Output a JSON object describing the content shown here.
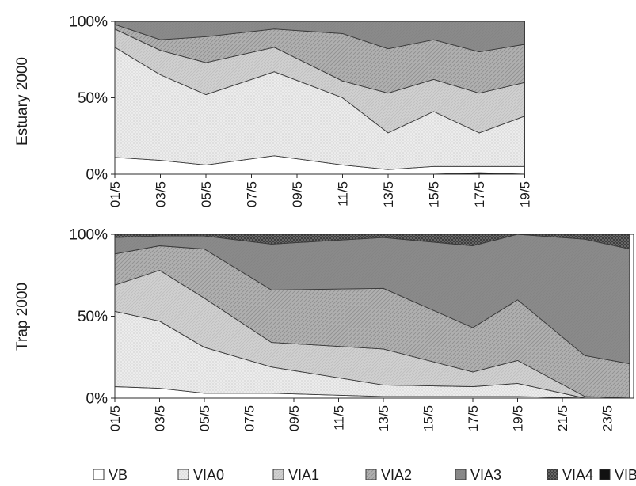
{
  "colors": {
    "VB": "#ffffff",
    "VIA0": "#ececec",
    "VIA1": "#d0d0d0",
    "VIA2": "#b0b0b0",
    "VIA3": "#8a8a8a",
    "VIA4": "#5a5a5a",
    "VIB": "#111111"
  },
  "legend": {
    "placement": "bottom",
    "items": [
      {
        "key": "VB",
        "label": "VB"
      },
      {
        "key": "VIA0",
        "label": "VIA0"
      },
      {
        "key": "VIA1",
        "label": "VIA1"
      },
      {
        "key": "VIA2",
        "label": "VIA2"
      },
      {
        "key": "VIA3",
        "label": "VIA3"
      },
      {
        "key": "VIA4",
        "label": "VIA4"
      },
      {
        "key": "VIB",
        "label": "VIB"
      }
    ]
  },
  "chart_data": [
    {
      "type": "area",
      "stacked": true,
      "percent": true,
      "ylabel": "Estuary 2000",
      "yticks": [
        "0%",
        "50%",
        "100%"
      ],
      "ylim": [
        0,
        100
      ],
      "grid": false,
      "xticks": [
        "01/5",
        "03/5",
        "05/5",
        "07/5",
        "09/5",
        "11/5",
        "13/5",
        "15/5",
        "17/5",
        "19/5"
      ],
      "x": [
        "01/5",
        "03/5",
        "05/5",
        "08/5",
        "11/5",
        "13/5",
        "15/5",
        "17/5",
        "19/5"
      ],
      "x_index": [
        0,
        1,
        2,
        3.5,
        5,
        6,
        7,
        8,
        9
      ],
      "series": [
        {
          "name": "VIB",
          "values": [
            0,
            0,
            0,
            0,
            0,
            0,
            0,
            1,
            0
          ]
        },
        {
          "name": "VB",
          "values": [
            11,
            9,
            6,
            12,
            6,
            3,
            5,
            4,
            5
          ]
        },
        {
          "name": "VIA0",
          "values": [
            72,
            56,
            46,
            55,
            44,
            24,
            36,
            22,
            33
          ]
        },
        {
          "name": "VIA1",
          "values": [
            12,
            16,
            21,
            16,
            11,
            26,
            21,
            26,
            22
          ]
        },
        {
          "name": "VIA2",
          "values": [
            3,
            7,
            17,
            12,
            31,
            29,
            26,
            27,
            25
          ]
        },
        {
          "name": "VIA3",
          "values": [
            2,
            12,
            10,
            5,
            8,
            18,
            12,
            20,
            15
          ]
        },
        {
          "name": "VIA4",
          "values": [
            0,
            0,
            0,
            0,
            0,
            0,
            0,
            0,
            0
          ]
        }
      ]
    },
    {
      "type": "area",
      "stacked": true,
      "percent": true,
      "ylabel": "Trap 2000",
      "yticks": [
        "0%",
        "50%",
        "100%"
      ],
      "ylim": [
        0,
        100
      ],
      "grid": false,
      "xticks": [
        "01/5",
        "03/5",
        "05/5",
        "07/5",
        "09/5",
        "11/5",
        "13/5",
        "15/5",
        "17/5",
        "19/5",
        "21/5",
        "23/5"
      ],
      "x": [
        "01/5",
        "03/5",
        "05/5",
        "08/5",
        "13/5",
        "17/5",
        "19/5",
        "22/5",
        "24/5"
      ],
      "x_index": [
        0,
        1,
        2,
        3.5,
        6,
        8,
        9,
        10.5,
        11.5
      ],
      "series": [
        {
          "name": "VB",
          "values": [
            7,
            6,
            3,
            3,
            1,
            1,
            1,
            0,
            0
          ]
        },
        {
          "name": "VIA0",
          "values": [
            46,
            41,
            28,
            16,
            7,
            6,
            8,
            0,
            0
          ]
        },
        {
          "name": "VIA1",
          "values": [
            16,
            31,
            30,
            15,
            22,
            9,
            14,
            1,
            0
          ]
        },
        {
          "name": "VIA2",
          "values": [
            19,
            15,
            30,
            32,
            37,
            27,
            37,
            25,
            21
          ]
        },
        {
          "name": "VIA3",
          "values": [
            10,
            6,
            8,
            28,
            31,
            50,
            40,
            71,
            70
          ]
        },
        {
          "name": "VIA4",
          "values": [
            2,
            1,
            1,
            6,
            2,
            7,
            0,
            3,
            9
          ]
        },
        {
          "name": "VIB",
          "values": [
            0,
            0,
            0,
            0,
            0,
            0,
            0,
            0,
            0
          ]
        }
      ]
    }
  ]
}
